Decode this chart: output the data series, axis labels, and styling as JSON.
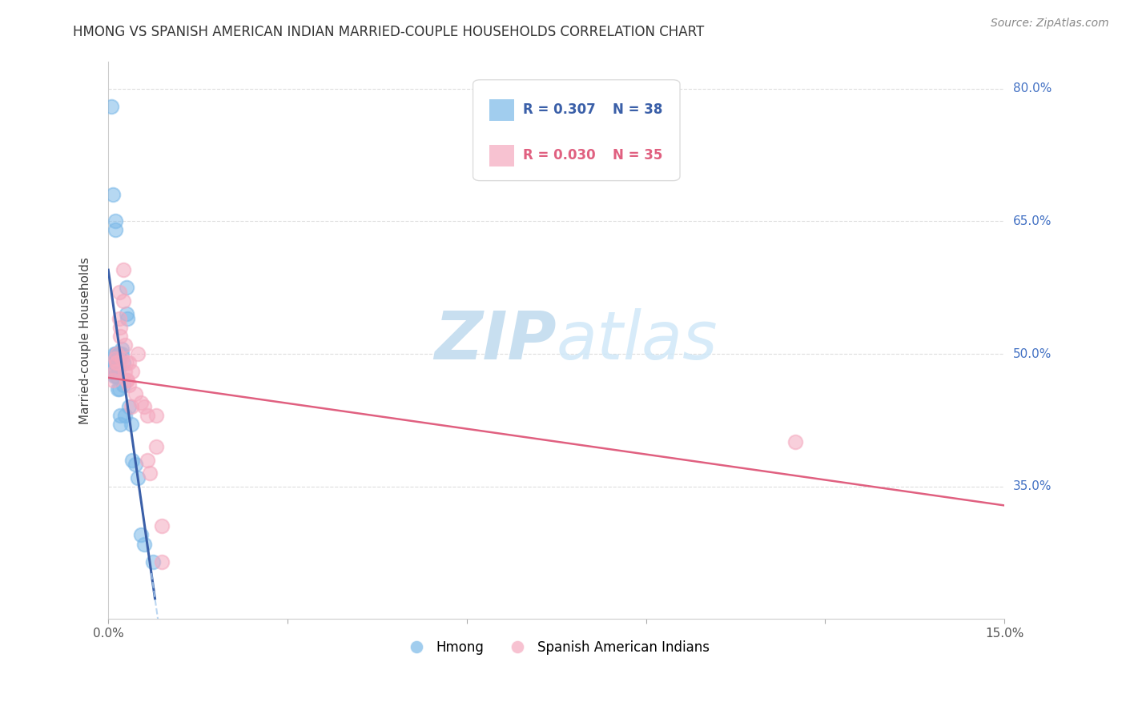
{
  "title": "HMONG VS SPANISH AMERICAN INDIAN MARRIED-COUPLE HOUSEHOLDS CORRELATION CHART",
  "source": "Source: ZipAtlas.com",
  "ylabel": "Married-couple Households",
  "xmin": 0.0,
  "xmax": 0.15,
  "ymin": 0.2,
  "ymax": 0.83,
  "yticks": [
    0.35,
    0.5,
    0.65,
    0.8
  ],
  "yticklabels": [
    "35.0%",
    "50.0%",
    "65.0%",
    "80.0%"
  ],
  "legend_r1": "R = 0.307",
  "legend_n1": "N = 38",
  "legend_r2": "R = 0.030",
  "legend_n2": "N = 35",
  "watermark": "ZIPatlas",
  "watermark_color": "#c8dff0",
  "blue_color": "#7ab8e8",
  "pink_color": "#f4a8be",
  "trendline_blue": "#3a5fa8",
  "trendline_pink": "#e06080",
  "hmong_x": [
    0.0005,
    0.0008,
    0.001,
    0.001,
    0.001,
    0.001,
    0.0012,
    0.0012,
    0.0013,
    0.0013,
    0.0015,
    0.0015,
    0.0015,
    0.0015,
    0.0015,
    0.0016,
    0.0018,
    0.0018,
    0.0018,
    0.0018,
    0.002,
    0.002,
    0.0022,
    0.0022,
    0.0025,
    0.0025,
    0.0028,
    0.003,
    0.003,
    0.0032,
    0.0035,
    0.0038,
    0.004,
    0.0045,
    0.005,
    0.0055,
    0.006,
    0.0075
  ],
  "hmong_y": [
    0.78,
    0.68,
    0.5,
    0.49,
    0.485,
    0.475,
    0.65,
    0.64,
    0.5,
    0.475,
    0.5,
    0.495,
    0.49,
    0.485,
    0.475,
    0.46,
    0.5,
    0.495,
    0.485,
    0.46,
    0.43,
    0.42,
    0.505,
    0.5,
    0.49,
    0.465,
    0.43,
    0.575,
    0.545,
    0.54,
    0.44,
    0.42,
    0.38,
    0.375,
    0.36,
    0.295,
    0.285,
    0.265
  ],
  "spanish_x": [
    0.0008,
    0.001,
    0.0012,
    0.0013,
    0.0015,
    0.0015,
    0.0015,
    0.0018,
    0.0018,
    0.002,
    0.002,
    0.0022,
    0.0025,
    0.0025,
    0.0028,
    0.0028,
    0.003,
    0.003,
    0.0032,
    0.0035,
    0.0035,
    0.0038,
    0.004,
    0.0045,
    0.005,
    0.0055,
    0.006,
    0.0065,
    0.0065,
    0.007,
    0.008,
    0.008,
    0.009,
    0.115,
    0.009
  ],
  "spanish_y": [
    0.47,
    0.48,
    0.495,
    0.49,
    0.5,
    0.49,
    0.48,
    0.57,
    0.54,
    0.53,
    0.52,
    0.495,
    0.595,
    0.56,
    0.51,
    0.48,
    0.49,
    0.47,
    0.47,
    0.49,
    0.465,
    0.44,
    0.48,
    0.455,
    0.5,
    0.445,
    0.44,
    0.43,
    0.38,
    0.365,
    0.43,
    0.395,
    0.305,
    0.4,
    0.265
  ]
}
